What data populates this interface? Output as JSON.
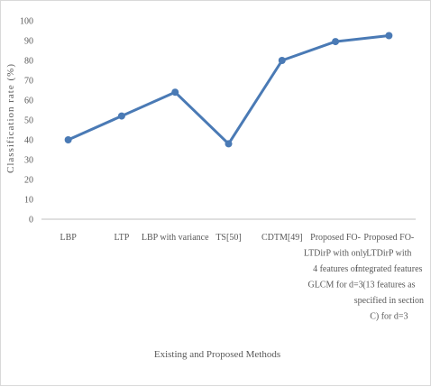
{
  "chart_data": {
    "type": "line",
    "title": "",
    "xlabel": "Existing and Proposed Methods",
    "ylabel": "Classification rate (%)",
    "ylim": [
      0,
      100
    ],
    "yticks": [
      "0",
      "10",
      "20",
      "30",
      "40",
      "50",
      "60",
      "70",
      "80",
      "90",
      "100"
    ],
    "grid": false,
    "legend": "none",
    "categories": [
      "LBP",
      "LTP",
      "LBP with variance",
      "TS[50]",
      "CDTM[49]",
      "Proposed FO-LTDirP with only 4 features of GLCM for d=3",
      "Proposed FO-LTDirP with integrated features (13 features as specified in section C) for d=3"
    ],
    "category_lines": [
      [
        "LBP"
      ],
      [
        "LTP"
      ],
      [
        "LBP with variance"
      ],
      [
        "TS[50]"
      ],
      [
        "CDTM[49]"
      ],
      [
        "Proposed FO-",
        "LTDirP with only",
        "4 features of",
        "GLCM for d=3"
      ],
      [
        "Proposed FO-",
        "LTDirP with",
        "integrated features",
        "(13 features as",
        "specified in section",
        "C) for d=3"
      ]
    ],
    "series": [
      {
        "values": [
          40,
          52,
          64,
          38,
          80,
          89.5,
          92.5
        ]
      }
    ],
    "colors": {
      "line": "#4a7ab5",
      "axis": "#bfbfbf",
      "text": "#595959"
    }
  }
}
